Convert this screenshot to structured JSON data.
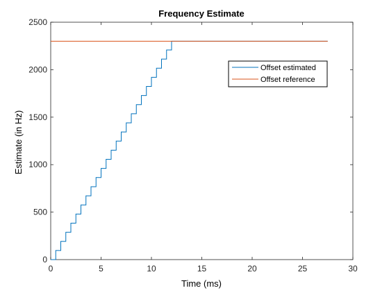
{
  "chart_data": {
    "type": "line",
    "title": "Frequency Estimate",
    "xlabel": "Time (ms)",
    "ylabel": "Estimate (in Hz)",
    "xlim": [
      0,
      30
    ],
    "ylim": [
      0,
      2500
    ],
    "xticks": [
      0,
      5,
      10,
      15,
      20,
      25,
      30
    ],
    "yticks": [
      0,
      500,
      1000,
      1500,
      2000,
      2500
    ],
    "grid": false,
    "legend_position": "top-right",
    "series": [
      {
        "name": "Offset estimated",
        "color": "#0072BD",
        "style": "step",
        "x": [
          0,
          0.5,
          1.0,
          1.5,
          2.0,
          2.5,
          3.0,
          3.5,
          4.0,
          4.5,
          5.0,
          5.5,
          6.0,
          6.5,
          7.0,
          7.5,
          8.0,
          8.5,
          9.0,
          9.5,
          10.0,
          10.5,
          11.0,
          11.5,
          12.0,
          27.5
        ],
        "y": [
          0,
          96,
          192,
          288,
          384,
          480,
          576,
          672,
          768,
          864,
          960,
          1056,
          1152,
          1248,
          1344,
          1440,
          1536,
          1632,
          1728,
          1824,
          1920,
          2016,
          2112,
          2208,
          2300,
          2300
        ]
      },
      {
        "name": "Offset reference",
        "color": "#D95319",
        "style": "line",
        "x": [
          0,
          27.5
        ],
        "y": [
          2300,
          2300
        ]
      }
    ]
  }
}
